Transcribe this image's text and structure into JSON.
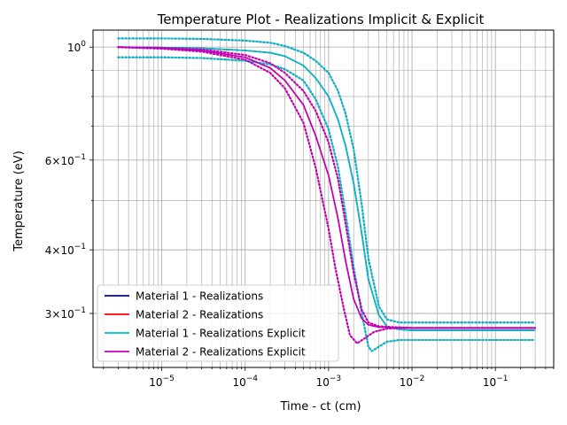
{
  "chart_data": {
    "type": "line",
    "title": "Temperature Plot - Realizations Implicit & Explicit",
    "xlabel": "Time - ct (cm)",
    "ylabel": "Temperature (eV)",
    "xscale": "log",
    "yscale": "log",
    "xlim": [
      1.5e-06,
      0.5
    ],
    "ylim": [
      0.235,
      1.08
    ],
    "grid": true,
    "legend_position": "lower-left",
    "x_tick_labels": [
      {
        "base": "10",
        "exp": "−5",
        "value": 1e-05
      },
      {
        "base": "10",
        "exp": "−4",
        "value": 0.0001
      },
      {
        "base": "10",
        "exp": "−3",
        "value": 0.001
      },
      {
        "base": "10",
        "exp": "−2",
        "value": 0.01
      },
      {
        "base": "10",
        "exp": "−1",
        "value": 0.1
      }
    ],
    "y_tick_labels": [
      {
        "base": "10",
        "exp": "0",
        "value": 1.0
      },
      {
        "base": "6×10",
        "exp": "−1",
        "value": 0.6
      },
      {
        "base": "4×10",
        "exp": "−1",
        "value": 0.4
      },
      {
        "base": "3×10",
        "exp": "−1",
        "value": 0.3
      }
    ],
    "legend": [
      {
        "label": "Material 1 - Realizations",
        "color": "#0000bf"
      },
      {
        "label": "Material 2 - Realizations",
        "color": "#ff0000"
      },
      {
        "label": "Material 1 - Realizations Explicit",
        "color": "#00bfbf"
      },
      {
        "label": "Material 2 - Realizations Explicit",
        "color": "#bf00bf"
      }
    ],
    "series": [
      {
        "name": "Material 1 - Realizations",
        "variant": "mean",
        "style": "solid",
        "color": "#0000bf",
        "x": [
          3e-06,
          1e-05,
          3e-05,
          0.0001,
          0.0002,
          0.0003,
          0.0005,
          0.0007,
          0.001,
          0.0013,
          0.0016,
          0.002,
          0.0025,
          0.003,
          0.004,
          0.005,
          0.007,
          0.01,
          0.03,
          0.1,
          0.3
        ],
        "y": [
          1.0,
          0.998,
          0.995,
          0.985,
          0.975,
          0.96,
          0.92,
          0.87,
          0.8,
          0.72,
          0.64,
          0.54,
          0.43,
          0.35,
          0.298,
          0.283,
          0.279,
          0.278,
          0.278,
          0.278,
          0.278
        ]
      },
      {
        "name": "Material 1 - Realizations",
        "variant": "upper",
        "style": "dotted",
        "color": "#0000bf",
        "x": [
          3e-06,
          1e-05,
          3e-05,
          0.0001,
          0.0002,
          0.0003,
          0.0005,
          0.0007,
          0.001,
          0.0013,
          0.0016,
          0.002,
          0.0025,
          0.003,
          0.004,
          0.005,
          0.007,
          0.01,
          0.03,
          0.1,
          0.3
        ],
        "y": [
          1.04,
          1.04,
          1.038,
          1.03,
          1.02,
          1.005,
          0.975,
          0.94,
          0.89,
          0.82,
          0.74,
          0.63,
          0.49,
          0.385,
          0.31,
          0.292,
          0.288,
          0.288,
          0.288,
          0.288,
          0.288
        ]
      },
      {
        "name": "Material 1 - Realizations",
        "variant": "lower",
        "style": "dotted",
        "color": "#0000bf",
        "x": [
          3e-06,
          1e-05,
          3e-05,
          0.0001,
          0.0002,
          0.0003,
          0.0005,
          0.0007,
          0.001,
          0.0013,
          0.0016,
          0.002,
          0.0025,
          0.003,
          0.0033,
          0.004,
          0.005,
          0.007,
          0.01,
          0.03,
          0.1,
          0.3
        ],
        "y": [
          0.955,
          0.955,
          0.952,
          0.94,
          0.925,
          0.905,
          0.86,
          0.79,
          0.69,
          0.58,
          0.47,
          0.37,
          0.3,
          0.258,
          0.253,
          0.258,
          0.264,
          0.266,
          0.266,
          0.266,
          0.266,
          0.266
        ]
      },
      {
        "name": "Material 2 - Realizations",
        "variant": "mean",
        "style": "solid",
        "color": "#ff0000",
        "x": [
          3e-06,
          1e-05,
          3e-05,
          0.0001,
          0.0002,
          0.0003,
          0.0005,
          0.0007,
          0.001,
          0.0013,
          0.0016,
          0.002,
          0.0025,
          0.003,
          0.004,
          0.006,
          0.01,
          0.03,
          0.1,
          0.3
        ],
        "y": [
          1.0,
          0.995,
          0.985,
          0.955,
          0.91,
          0.86,
          0.77,
          0.67,
          0.56,
          0.46,
          0.38,
          0.32,
          0.293,
          0.285,
          0.282,
          0.281,
          0.281,
          0.281,
          0.281,
          0.281
        ]
      },
      {
        "name": "Material 2 - Realizations",
        "variant": "upper",
        "style": "dotted",
        "color": "#ff0000",
        "x": [
          3e-06,
          1e-05,
          3e-05,
          0.0001,
          0.0002,
          0.0003,
          0.0005,
          0.0007,
          0.001,
          0.0013,
          0.0016,
          0.002,
          0.0025,
          0.003,
          0.004,
          0.006,
          0.01,
          0.03,
          0.1,
          0.3
        ],
        "y": [
          1.0,
          0.997,
          0.99,
          0.965,
          0.93,
          0.89,
          0.82,
          0.75,
          0.65,
          0.55,
          0.45,
          0.36,
          0.305,
          0.288,
          0.283,
          0.282,
          0.281,
          0.281,
          0.281,
          0.281
        ]
      },
      {
        "name": "Material 2 - Realizations",
        "variant": "lower",
        "style": "dotted",
        "color": "#ff0000",
        "x": [
          3e-06,
          1e-05,
          3e-05,
          0.0001,
          0.0002,
          0.0003,
          0.0005,
          0.0007,
          0.001,
          0.0012,
          0.0015,
          0.0018,
          0.0022,
          0.0027,
          0.0035,
          0.005,
          0.007,
          0.01,
          0.03,
          0.1,
          0.3
        ],
        "y": [
          1.0,
          0.993,
          0.98,
          0.945,
          0.89,
          0.83,
          0.71,
          0.58,
          0.44,
          0.37,
          0.31,
          0.272,
          0.262,
          0.268,
          0.276,
          0.28,
          0.281,
          0.281,
          0.281,
          0.281,
          0.281
        ]
      },
      {
        "name": "Material 1 - Realizations Explicit",
        "variant": "mean",
        "style": "solid",
        "color": "#00bfbf",
        "x": [
          3e-06,
          1e-05,
          3e-05,
          0.0001,
          0.0002,
          0.0003,
          0.0005,
          0.0007,
          0.001,
          0.0013,
          0.0016,
          0.002,
          0.0025,
          0.003,
          0.004,
          0.005,
          0.007,
          0.01,
          0.03,
          0.1,
          0.3
        ],
        "y": [
          1.0,
          0.998,
          0.995,
          0.985,
          0.975,
          0.96,
          0.92,
          0.87,
          0.8,
          0.72,
          0.64,
          0.54,
          0.43,
          0.35,
          0.298,
          0.283,
          0.279,
          0.278,
          0.278,
          0.278,
          0.278
        ]
      },
      {
        "name": "Material 1 - Realizations Explicit",
        "variant": "upper",
        "style": "dotted",
        "color": "#00bfbf",
        "x": [
          3e-06,
          1e-05,
          3e-05,
          0.0001,
          0.0002,
          0.0003,
          0.0005,
          0.0007,
          0.001,
          0.0013,
          0.0016,
          0.002,
          0.0025,
          0.003,
          0.004,
          0.005,
          0.007,
          0.01,
          0.03,
          0.1,
          0.3
        ],
        "y": [
          1.04,
          1.04,
          1.038,
          1.03,
          1.02,
          1.005,
          0.975,
          0.94,
          0.89,
          0.82,
          0.74,
          0.63,
          0.49,
          0.385,
          0.31,
          0.292,
          0.288,
          0.288,
          0.288,
          0.288,
          0.288
        ]
      },
      {
        "name": "Material 1 - Realizations Explicit",
        "variant": "lower",
        "style": "dotted",
        "color": "#00bfbf",
        "x": [
          3e-06,
          1e-05,
          3e-05,
          0.0001,
          0.0002,
          0.0003,
          0.0005,
          0.0007,
          0.001,
          0.0013,
          0.0016,
          0.002,
          0.0025,
          0.003,
          0.0033,
          0.004,
          0.005,
          0.007,
          0.01,
          0.03,
          0.1,
          0.3
        ],
        "y": [
          0.955,
          0.955,
          0.952,
          0.94,
          0.925,
          0.905,
          0.86,
          0.79,
          0.69,
          0.58,
          0.47,
          0.37,
          0.3,
          0.258,
          0.253,
          0.258,
          0.264,
          0.266,
          0.266,
          0.266,
          0.266,
          0.266
        ]
      },
      {
        "name": "Material 2 - Realizations Explicit",
        "variant": "mean",
        "style": "solid",
        "color": "#bf00bf",
        "x": [
          3e-06,
          1e-05,
          3e-05,
          0.0001,
          0.0002,
          0.0003,
          0.0005,
          0.0007,
          0.001,
          0.0013,
          0.0016,
          0.002,
          0.0025,
          0.003,
          0.004,
          0.006,
          0.01,
          0.03,
          0.1,
          0.3
        ],
        "y": [
          1.0,
          0.995,
          0.985,
          0.955,
          0.91,
          0.86,
          0.77,
          0.67,
          0.56,
          0.46,
          0.38,
          0.32,
          0.293,
          0.285,
          0.282,
          0.281,
          0.281,
          0.281,
          0.281,
          0.281
        ]
      },
      {
        "name": "Material 2 - Realizations Explicit",
        "variant": "upper",
        "style": "dotted",
        "color": "#bf00bf",
        "x": [
          3e-06,
          1e-05,
          3e-05,
          0.0001,
          0.0002,
          0.0003,
          0.0005,
          0.0007,
          0.001,
          0.0013,
          0.0016,
          0.002,
          0.0025,
          0.003,
          0.004,
          0.006,
          0.01,
          0.03,
          0.1,
          0.3
        ],
        "y": [
          1.0,
          0.997,
          0.99,
          0.965,
          0.93,
          0.89,
          0.82,
          0.75,
          0.65,
          0.55,
          0.45,
          0.36,
          0.305,
          0.288,
          0.283,
          0.282,
          0.281,
          0.281,
          0.281,
          0.281
        ]
      },
      {
        "name": "Material 2 - Realizations Explicit",
        "variant": "lower",
        "style": "dotted",
        "color": "#bf00bf",
        "x": [
          3e-06,
          1e-05,
          3e-05,
          0.0001,
          0.0002,
          0.0003,
          0.0005,
          0.0007,
          0.001,
          0.0012,
          0.0015,
          0.0018,
          0.0022,
          0.0027,
          0.0035,
          0.005,
          0.007,
          0.01,
          0.03,
          0.1,
          0.3
        ],
        "y": [
          1.0,
          0.993,
          0.98,
          0.945,
          0.89,
          0.83,
          0.71,
          0.58,
          0.44,
          0.37,
          0.31,
          0.272,
          0.262,
          0.268,
          0.276,
          0.28,
          0.281,
          0.281,
          0.281,
          0.281,
          0.281
        ]
      }
    ]
  }
}
